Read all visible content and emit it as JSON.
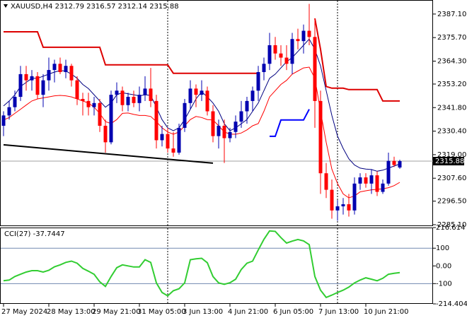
{
  "chart_data": {
    "type": "candlestick",
    "title": "XAUUSD,H4 2312.79 2316.57 2312.14 2315.88",
    "categories": [
      "27 May 2024",
      null,
      null,
      null,
      null,
      null,
      null,
      null,
      "28 May 13:00",
      null,
      null,
      null,
      null,
      null,
      null,
      null,
      "29 May 21:00",
      null,
      null,
      null,
      null,
      null,
      null,
      null,
      "31 May 05:00",
      null,
      null,
      null,
      null,
      null,
      null,
      null,
      "3 Jun 13:00",
      null,
      null,
      null,
      null,
      null,
      null,
      null,
      "4 Jun 21:00",
      null,
      null,
      null,
      null,
      null,
      null,
      null,
      "6 Jun 05:00",
      null,
      null,
      null,
      null,
      null,
      null,
      null,
      "7 Jun 13:00",
      null,
      null,
      null,
      null,
      null,
      null,
      null,
      "10 Jun 21:00",
      null,
      null,
      null,
      null,
      null,
      null
    ],
    "open": [
      2333,
      2338,
      2342,
      2347,
      2358,
      2355,
      2357,
      2348,
      2355,
      2360,
      2363,
      2359,
      2362,
      2355,
      2346,
      2345,
      2342,
      2344,
      2333,
      2325,
      2348,
      2350,
      2343,
      2347,
      2344,
      2348,
      2351,
      2345,
      2326,
      2329,
      2322,
      2320,
      2332,
      2344,
      2351,
      2348,
      2350,
      2340,
      2328,
      2333,
      2327,
      2330,
      2335,
      2340,
      2345,
      2350,
      2359,
      2363,
      2372,
      2368,
      2366,
      2363,
      2375,
      2374,
      2379,
      2376,
      2345,
      2310,
      2302,
      2292,
      2294,
      2295,
      2292,
      2305,
      2308,
      2305,
      2309,
      2301,
      2305,
      2316,
      2312.79
    ],
    "high": [
      2340,
      2345,
      2350,
      2362,
      2362,
      2360,
      2359,
      2358,
      2366,
      2365,
      2366,
      2365,
      2363,
      2357,
      2349,
      2349,
      2347,
      2346,
      2336,
      2350,
      2354,
      2352,
      2349,
      2350,
      2352,
      2357,
      2361,
      2348,
      2333,
      2332,
      2330,
      2334,
      2346,
      2355,
      2353,
      2355,
      2352,
      2343,
      2336,
      2336,
      2332,
      2338,
      2345,
      2347,
      2352,
      2362,
      2366,
      2378,
      2376,
      2372,
      2372,
      2378,
      2380,
      2382,
      2392,
      2385,
      2350,
      2315,
      2307,
      2297,
      2298,
      2300,
      2308,
      2310,
      2310,
      2312,
      2311,
      2307,
      2320,
      2318,
      2316.57
    ],
    "low": [
      2328,
      2336,
      2340,
      2345,
      2350,
      2350,
      2346,
      2342,
      2350,
      2354,
      2358,
      2356,
      2352,
      2343,
      2338,
      2338,
      2338,
      2330,
      2320,
      2324,
      2344,
      2340,
      2340,
      2342,
      2340,
      2345,
      2342,
      2322,
      2323,
      2320,
      2318,
      2319,
      2330,
      2341,
      2342,
      2345,
      2338,
      2325,
      2322,
      2315,
      2325,
      2327,
      2332,
      2334,
      2340,
      2345,
      2355,
      2360,
      2365,
      2362,
      2360,
      2358,
      2370,
      2368,
      2372,
      2332,
      2300,
      2298,
      2288,
      2287,
      2290,
      2289,
      2290,
      2302,
      2303,
      2300,
      2299,
      2300,
      2304,
      2313,
      2312.14
    ],
    "close": [
      2338,
      2342,
      2347,
      2358,
      2355,
      2357,
      2348,
      2355,
      2360,
      2363,
      2359,
      2362,
      2355,
      2346,
      2345,
      2342,
      2344,
      2333,
      2325,
      2348,
      2350,
      2343,
      2347,
      2344,
      2348,
      2351,
      2345,
      2326,
      2329,
      2322,
      2320,
      2332,
      2344,
      2351,
      2348,
      2350,
      2340,
      2328,
      2333,
      2327,
      2330,
      2335,
      2340,
      2345,
      2350,
      2359,
      2363,
      2372,
      2368,
      2366,
      2363,
      2375,
      2374,
      2379,
      2376,
      2345,
      2310,
      2302,
      2292,
      2294,
      2295,
      2292,
      2305,
      2308,
      2305,
      2309,
      2301,
      2305,
      2316,
      2314,
      2315.88
    ],
    "up_color": "#0000b0",
    "down_color": "#ff0000",
    "ylim": [
      2284.4,
      2393.9
    ],
    "yticks": [
      {
        "value": 2387.1,
        "label": "2387.10"
      },
      {
        "value": 2375.7,
        "label": "2375.70"
      },
      {
        "value": 2364.3,
        "label": "2364.30"
      },
      {
        "value": 2353.2,
        "label": "2353.20"
      },
      {
        "value": 2341.8,
        "label": "2341.80"
      },
      {
        "value": 2330.4,
        "label": "2330.40"
      },
      {
        "value": 2319,
        "label": "2319.00"
      },
      {
        "value": 2307.6,
        "label": "2307.60"
      },
      {
        "value": 2296.5,
        "label": "2296.50"
      },
      {
        "value": 2285.1,
        "label": "2285.10"
      }
    ],
    "last_price": 2315.88,
    "lines": [
      {
        "color": "#000080",
        "width": 1,
        "values": [
          2342.6,
          2345,
          2348,
          2352,
          2354,
          2356,
          2356,
          2357,
          2358,
          2359,
          2359.7,
          2359.5,
          2358,
          2356,
          2353,
          2351,
          2348,
          2345,
          2342,
          2344,
          2348,
          2349,
          2348.5,
          2348,
          2347.5,
          2348,
          2347.7,
          2342,
          2336,
          2332,
          2330.6,
          2332,
          2336,
          2341,
          2346,
          2349.5,
          2347,
          2344,
          2340,
          2334,
          2330.6,
          2332,
          2334,
          2336,
          2340,
          2344,
          2350,
          2356,
          2358,
          2361,
          2364,
          2366,
          2369,
          2372,
          2375,
          2370,
          2362,
          2350,
          2338,
          2328,
          2322,
          2317,
          2314,
          2312.5,
          2312,
          2311.8,
          2311,
          2311.5,
          2312.5,
          2313.5,
          2314.5
        ]
      },
      {
        "color": "#ff0000",
        "width": 1,
        "values": [
          2335.8,
          2337,
          2339,
          2341,
          2343,
          2345,
          2346,
          2346.5,
          2347,
          2347.5,
          2347.7,
          2347.5,
          2347,
          2346,
          2345,
          2344,
          2342,
          2339,
          2335,
          2334.1,
          2336,
          2339,
          2339.2,
          2338.5,
          2338,
          2338,
          2337.5,
          2335,
          2332,
          2330,
          2328.9,
          2330,
          2333,
          2336,
          2337.5,
          2337,
          2336,
          2335.8,
          2333,
          2330,
          2329,
          2328.9,
          2329.5,
          2331,
          2333,
          2334.1,
          2340,
          2347,
          2350,
          2353,
          2355,
          2358,
          2359.5,
          2361,
          2361.4,
          2356,
          2340,
          2325,
          2312,
          2305,
          2300,
          2298.1,
          2299,
          2301,
          2301.5,
          2302,
          2302.2,
          2302.5,
          2303,
          2304,
          2305.6
        ]
      },
      {
        "color": "#dd0000",
        "width": 2,
        "values": [
          2378.5,
          2378.5,
          2378.5,
          2378.5,
          2378.5,
          2378.5,
          2378.5,
          2371,
          2371,
          2371,
          2371,
          2371,
          2371,
          2371,
          2371,
          2371,
          2371,
          2371,
          2362.5,
          2362.5,
          2362.5,
          2362.5,
          2362.5,
          2362.5,
          2362.5,
          2362.5,
          2362.5,
          2362.5,
          2362.5,
          2362.5,
          2358.4,
          2358.4,
          2358.4,
          2358.4,
          2358.4,
          2358.4,
          2358.4,
          2358.4,
          2358.4,
          2358.4,
          2358.4,
          2358.4,
          2358.4,
          2358.4,
          2358.4,
          2358.4,
          null,
          null,
          null,
          null,
          null,
          null,
          null,
          null,
          null,
          2385,
          2370,
          2352,
          2351.2,
          2351.2,
          2351.2,
          2350.5,
          2350.5,
          2350.5,
          2350.5,
          2350.5,
          2350.5,
          2345,
          2345,
          2345,
          2345
        ]
      },
      {
        "color": "#0000ff",
        "width": 2,
        "values": [
          null,
          null,
          null,
          null,
          null,
          null,
          null,
          null,
          null,
          null,
          null,
          null,
          null,
          null,
          null,
          null,
          null,
          null,
          null,
          null,
          null,
          null,
          null,
          null,
          null,
          null,
          null,
          null,
          null,
          null,
          null,
          null,
          null,
          null,
          null,
          null,
          null,
          null,
          null,
          null,
          null,
          null,
          null,
          null,
          null,
          null,
          null,
          2327.9,
          2327.9,
          2335.8,
          2335.8,
          2335.8,
          2335.8,
          2335.8,
          2341,
          null,
          null,
          null,
          null,
          null,
          null,
          null,
          null,
          null,
          null,
          null,
          null,
          null,
          null,
          null,
          null
        ]
      }
    ],
    "trendline": {
      "color": "#000000",
      "x": [
        0,
        37
      ],
      "values": [
        2323.8,
        2314.9
      ]
    },
    "indicator": {
      "type": "line",
      "label": "CCI(27) -37.7447",
      "color": "#32cd32",
      "values": [
        -84,
        -80,
        -60,
        -47,
        -35,
        -27,
        -27,
        -35,
        -25,
        -5,
        6,
        20,
        27,
        15,
        -14,
        -30,
        -47,
        -90,
        -116,
        -60,
        -10,
        6,
        0,
        -6,
        -6,
        35,
        20,
        -96,
        -150,
        -169,
        -140,
        -129,
        -96,
        35,
        40,
        43,
        18,
        -60,
        -96,
        -104,
        -95,
        -75,
        -20,
        15,
        27,
        90,
        150,
        198,
        195,
        160,
        129,
        140,
        149,
        141,
        120,
        -60,
        -137,
        -178,
        -165,
        -150,
        -137,
        -120,
        -96,
        -80,
        -67,
        -75,
        -84,
        -70,
        -47,
        -42,
        -37.7447
      ],
      "ylim": [
        -214.4047,
        216.614
      ],
      "yticks": [
        216.614,
        100,
        {
          "value": 0,
          "label": "0.00"
        },
        -100,
        -214.4047
      ],
      "levels": [
        100,
        -100
      ]
    }
  }
}
